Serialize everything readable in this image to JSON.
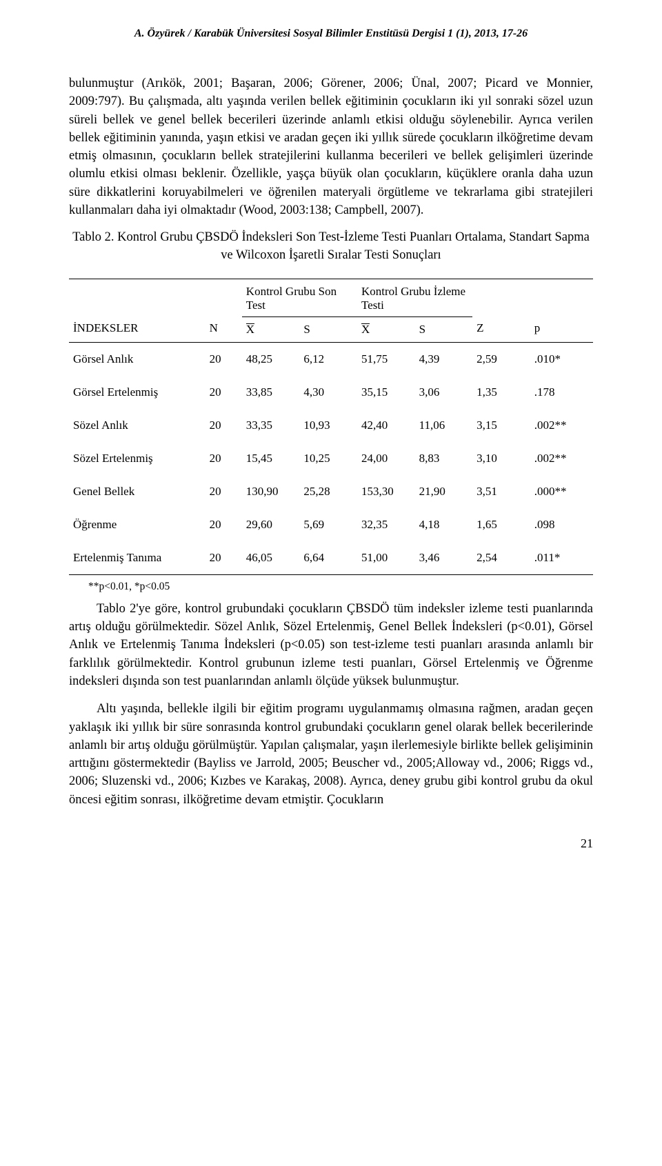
{
  "header": "A. Özyürek / Karabük Üniversitesi Sosyal Bilimler Enstitüsü Dergisi 1 (1), 2013,  17-26",
  "para1": "bulunmuştur (Arıkök, 2001; Başaran, 2006; Görener, 2006; Ünal, 2007; Picard ve Monnier, 2009:797). Bu çalışmada, altı yaşında verilen bellek eğitiminin çocukların iki yıl sonraki sözel uzun süreli bellek ve genel bellek becerileri üzerinde anlamlı etkisi olduğu söylenebilir. Ayrıca verilen bellek eğitiminin yanında, yaşın etkisi ve aradan geçen iki yıllık sürede çocukların ilköğretime devam etmiş olmasının, çocukların bellek stratejilerini kullanma becerileri ve bellek gelişimleri üzerinde olumlu etkisi olması beklenir. Özellikle, yaşça büyük olan çocukların, küçüklere oranla daha uzun süre dikkatlerini koruyabilmeleri ve öğrenilen materyali örgütleme ve tekrarlama gibi stratejileri kullanmaları daha iyi olmaktadır (Wood, 2003:138; Campbell, 2007).",
  "table_caption": "Tablo 2. Kontrol Grubu ÇBSDÖ İndeksleri Son Test-İzleme Testi Puanları Ortalama, Standart Sapma ve Wilcoxon İşaretli Sıralar Testi Sonuçları",
  "table": {
    "headers": {
      "indeksler": "İNDEKSLER",
      "n": "N",
      "kontrol_son": "Kontrol Grubu Son Test",
      "kontrol_izleme": "Kontrol Grubu İzleme Testi",
      "z": "Z",
      "p": "p",
      "s": "S"
    },
    "rows": [
      {
        "name": "Görsel Anlık",
        "n": "20",
        "x1": "48,25",
        "s1": "6,12",
        "x2": "51,75",
        "s2": "4,39",
        "z": "2,59",
        "p": ".010*"
      },
      {
        "name": "Görsel Ertelenmiş",
        "n": "20",
        "x1": "33,85",
        "s1": "4,30",
        "x2": "35,15",
        "s2": "3,06",
        "z": "1,35",
        "p": ".178"
      },
      {
        "name": "Sözel Anlık",
        "n": "20",
        "x1": "33,35",
        "s1": "10,93",
        "x2": "42,40",
        "s2": "11,06",
        "z": "3,15",
        "p": ".002**"
      },
      {
        "name": "Sözel Ertelenmiş",
        "n": "20",
        "x1": "15,45",
        "s1": "10,25",
        "x2": "24,00",
        "s2": "8,83",
        "z": "3,10",
        "p": ".002**"
      },
      {
        "name": "Genel Bellek",
        "n": "20",
        "x1": "130,90",
        "s1": "25,28",
        "x2": "153,30",
        "s2": "21,90",
        "z": "3,51",
        "p": ".000**"
      },
      {
        "name": "Öğrenme",
        "n": "20",
        "x1": "29,60",
        "s1": "5,69",
        "x2": "32,35",
        "s2": "4,18",
        "z": "1,65",
        "p": ".098"
      },
      {
        "name": "Ertelenmiş Tanıma",
        "n": "20",
        "x1": "46,05",
        "s1": "6,64",
        "x2": "51,00",
        "s2": "3,46",
        "z": "2,54",
        "p": ".011*"
      }
    ]
  },
  "table_note": "**p<0.01, *p<0.05",
  "para2": "Tablo 2'ye göre, kontrol grubundaki çocukların ÇBSDÖ tüm indeksler izleme testi puanlarında artış olduğu görülmektedir. Sözel Anlık, Sözel Ertelenmiş, Genel Bellek İndeksleri (p<0.01), Görsel Anlık ve Ertelenmiş Tanıma İndeksleri (p<0.05) son test-izleme testi puanları arasında anlamlı bir farklılık görülmektedir. Kontrol grubunun izleme testi puanları, Görsel Ertelenmiş ve Öğrenme indeksleri dışında son test puanlarından anlamlı ölçüde yüksek bulunmuştur.",
  "para3": "Altı yaşında, bellekle ilgili bir eğitim programı uygulanmamış olmasına rağmen, aradan geçen yaklaşık iki yıllık bir süre sonrasında kontrol grubundaki çocukların genel olarak bellek becerilerinde anlamlı bir artış olduğu görülmüştür. Yapılan çalışmalar, yaşın ilerlemesiyle birlikte bellek gelişiminin arttığını göstermektedir (Bayliss ve Jarrold, 2005; Beuscher vd., 2005;Alloway vd., 2006; Riggs vd., 2006; Sluzenski vd., 2006; Kızbes ve Karakaş, 2008). Ayrıca, deney grubu gibi kontrol grubu da okul öncesi eğitim sonrası, ilköğretime devam etmiştir. Çocukların",
  "page_number": "21"
}
